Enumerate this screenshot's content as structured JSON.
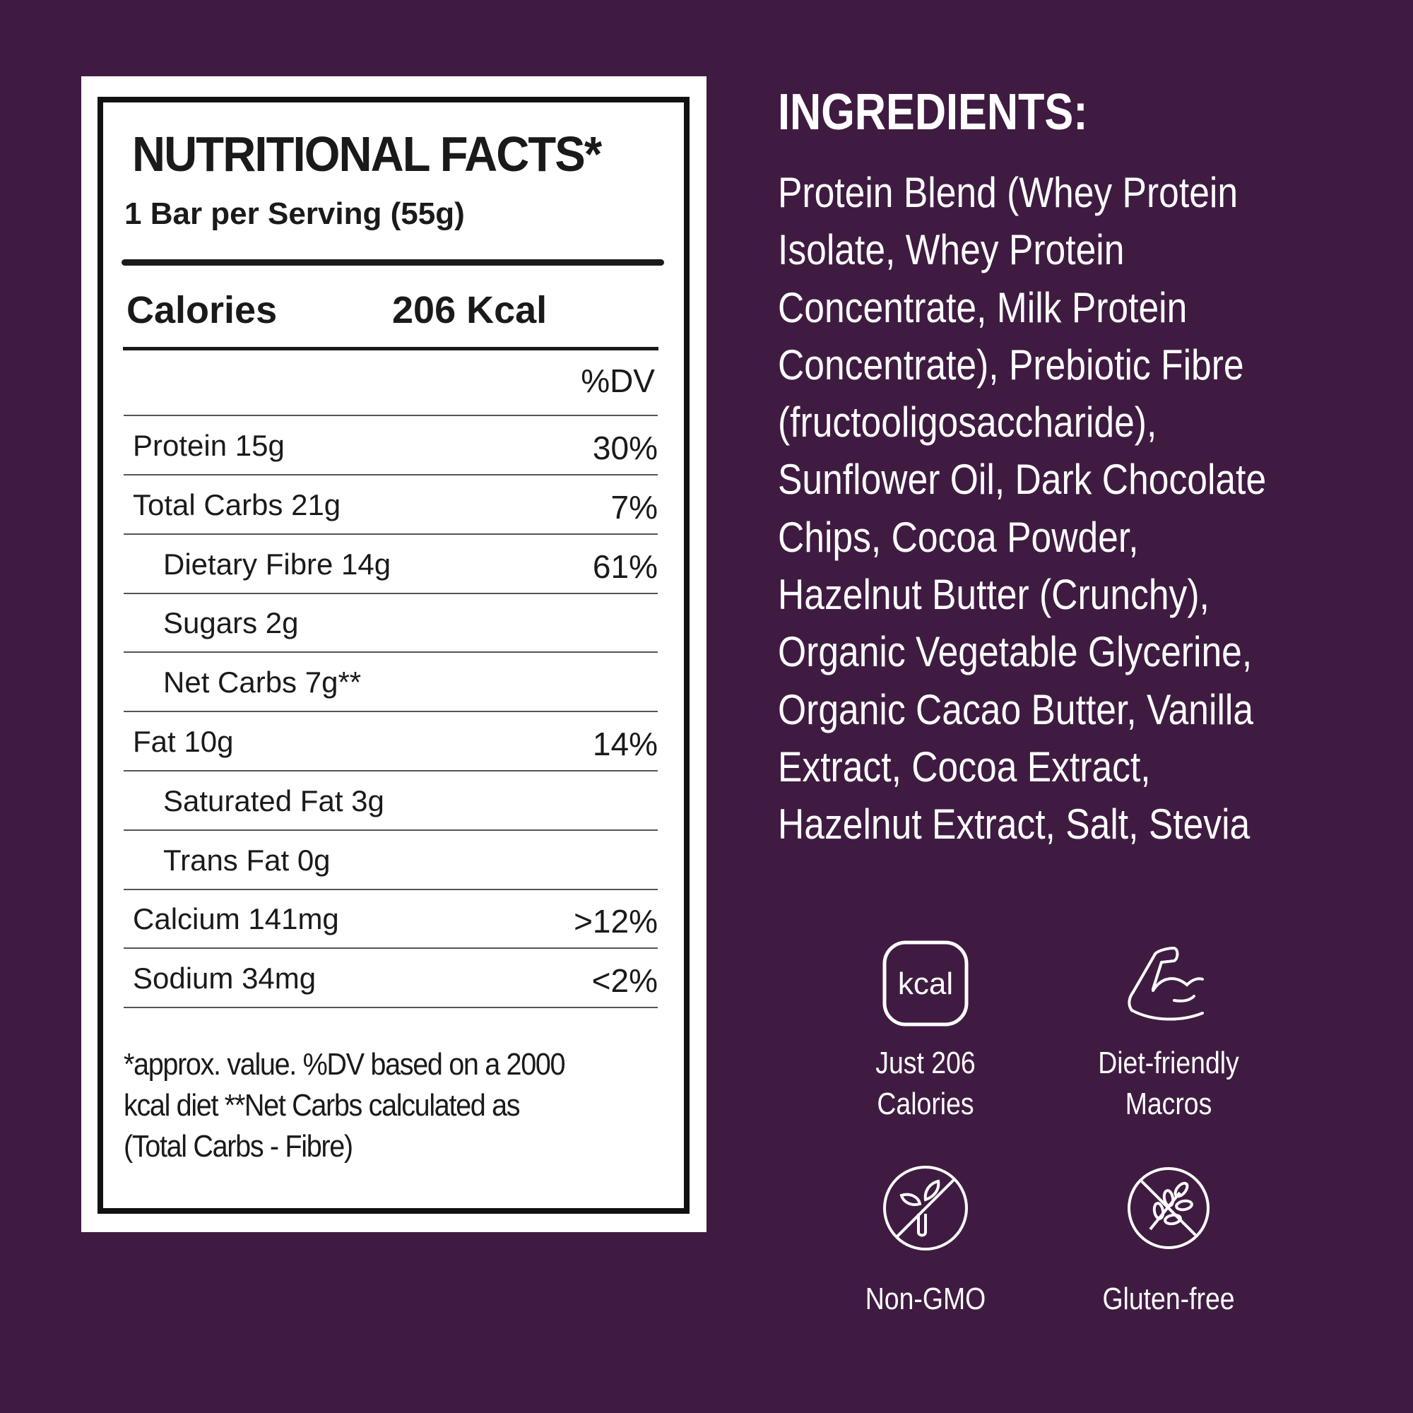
{
  "colors": {
    "background": "#3f1b42",
    "panel": "#ffffff",
    "text_dark": "#1a1a1a"
  },
  "nutrition": {
    "title": "NUTRITIONAL FACTS*",
    "serving": "1 Bar per Serving (55g)",
    "calories_label": "Calories",
    "calories_value": "206 Kcal",
    "dv_header": "%DV",
    "rows": [
      {
        "label": "Protein 15g",
        "pct": "30%"
      },
      {
        "label": "Total Carbs 21g",
        "pct": "7%"
      },
      {
        "label": "Dietary Fibre 14g",
        "pct": "61%"
      },
      {
        "label": "Sugars 2g",
        "pct": ""
      },
      {
        "label": "Net Carbs 7g**",
        "pct": ""
      },
      {
        "label": "Fat 10g",
        "pct": "14%"
      },
      {
        "label": "Saturated Fat 3g",
        "pct": ""
      },
      {
        "label": "Trans Fat 0g",
        "pct": ""
      },
      {
        "label": "Calcium 141mg",
        "pct": ">12%"
      },
      {
        "label": "Sodium 34mg",
        "pct": "<2%"
      }
    ],
    "footnote": [
      "*approx. value. %DV based on a 2000",
      "kcal diet **Net Carbs calculated as",
      "(Total Carbs - Fibre)"
    ]
  },
  "ingredients": {
    "heading": "INGREDIENTS:",
    "lines": [
      "Protein Blend (Whey Protein",
      "Isolate, Whey Protein",
      "Concentrate, Milk Protein",
      "Concentrate), Prebiotic Fibre",
      "(fructooligosaccharide),",
      "Sunflower Oil, Dark Chocolate",
      "Chips, Cocoa Powder,",
      "Hazelnut Butter (Crunchy),",
      "Organic Vegetable Glycerine,",
      "Organic Cacao Butter, Vanilla",
      "Extract, Cocoa Extract,",
      "Hazelnut Extract, Salt, Stevia"
    ]
  },
  "features": [
    {
      "icon": "kcal-icon",
      "icon_text": "kcal",
      "lines": [
        "Just 206",
        "Calories"
      ]
    },
    {
      "icon": "flexed-arm-icon",
      "lines": [
        "Diet-friendly",
        "Macros"
      ]
    },
    {
      "icon": "no-gmo-icon",
      "lines": [
        "Non-GMO"
      ]
    },
    {
      "icon": "no-gluten-icon",
      "lines": [
        "Gluten-free"
      ]
    }
  ]
}
